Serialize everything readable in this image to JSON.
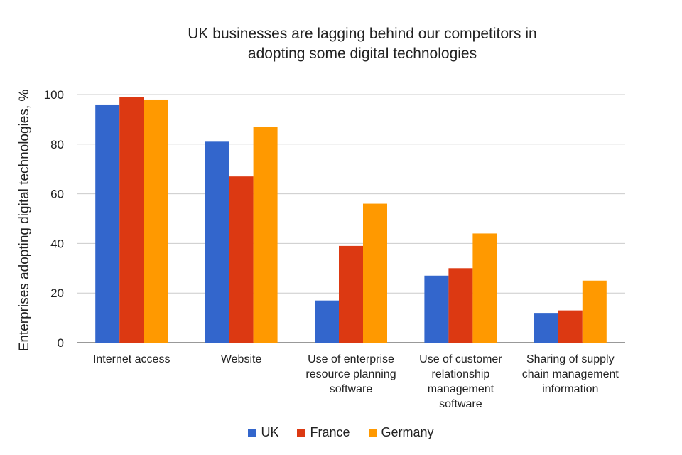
{
  "chart_data": {
    "type": "bar",
    "title": [
      "UK businesses are lagging behind our competitors in",
      "adopting some digital technologies"
    ],
    "xlabel": "",
    "ylabel": "Enterprises adopting digital technologies, %",
    "ylim": [
      0,
      100
    ],
    "yticks": [
      0,
      20,
      40,
      60,
      80,
      100
    ],
    "grid": true,
    "legend_position": "bottom",
    "categories": [
      [
        "Internet access"
      ],
      [
        "Website"
      ],
      [
        "Use of enterprise",
        "resource planning",
        "software"
      ],
      [
        "Use of customer",
        "relationship",
        "management",
        "software"
      ],
      [
        "Sharing of supply",
        "chain management",
        "information"
      ]
    ],
    "series": [
      {
        "name": "UK",
        "color": "#3366CC",
        "values": [
          96,
          81,
          17,
          27,
          12
        ]
      },
      {
        "name": "France",
        "color": "#DC3912",
        "values": [
          99,
          67,
          39,
          30,
          13
        ]
      },
      {
        "name": "Germany",
        "color": "#FF9900",
        "values": [
          98,
          87,
          56,
          44,
          25
        ]
      }
    ]
  }
}
